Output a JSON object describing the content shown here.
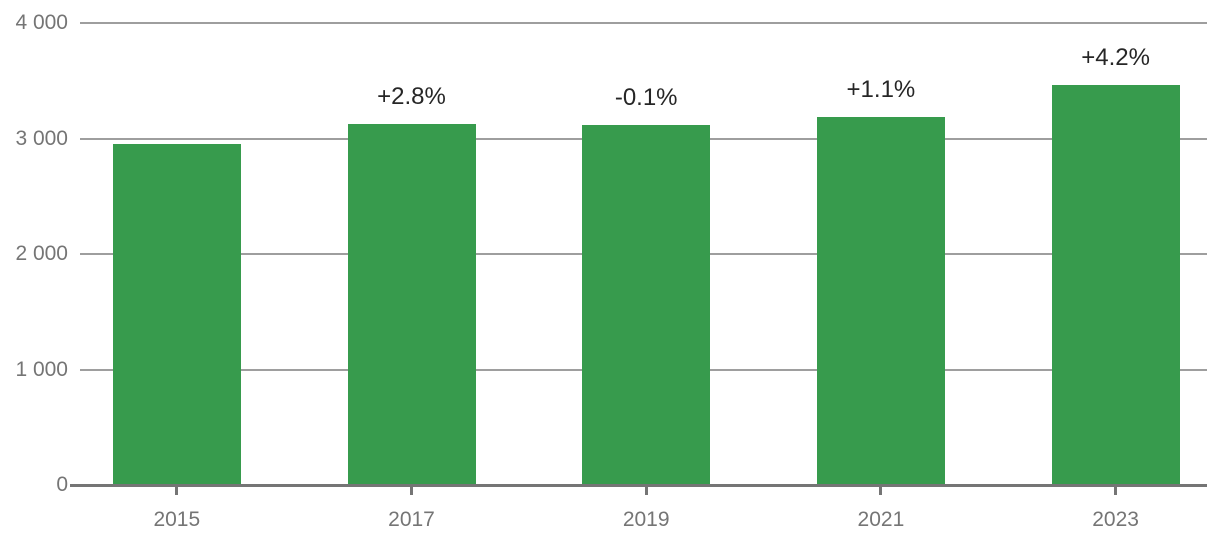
{
  "chart_data": {
    "type": "bar",
    "title": "",
    "xlabel": "",
    "ylabel": "",
    "categories": [
      "2015",
      "2017",
      "2019",
      "2021",
      "2023"
    ],
    "values": [
      2950,
      3125,
      3120,
      3185,
      3465
    ],
    "annotations": [
      "",
      "+2.8%",
      "-0.1%",
      "+1.1%",
      "+4.2%"
    ],
    "ylim": [
      0,
      4000
    ],
    "yticks": [
      0,
      1000,
      2000,
      3000,
      4000
    ],
    "ytick_labels": [
      "0",
      "1 000",
      "2 000",
      "3 000",
      "4 000"
    ],
    "grid": true,
    "legend_position": "none",
    "colors": {
      "bar": "#379b4d",
      "gridline": "#9e9e9e",
      "baseline": "#757575",
      "axis_label": "#757575",
      "annotation": "#262626",
      "background": "#ffffff"
    }
  }
}
